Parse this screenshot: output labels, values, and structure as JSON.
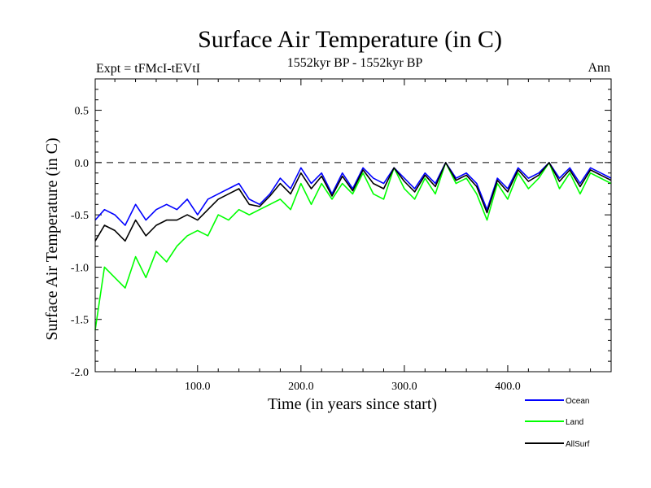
{
  "chart_data": {
    "type": "line",
    "title": "Surface Air Temperature (in C)",
    "subtitle_left": "Expt = tFMcI-tEVtI",
    "subtitle_center": "1552kyr BP - 1552kyr BP",
    "subtitle_right": "Ann",
    "xlabel": "Time (in years since start)",
    "ylabel": "Surface Air Temperature (in C)",
    "xlim": [
      1,
      500
    ],
    "ylim": [
      -2.0,
      0.8
    ],
    "x_ticks": [
      100,
      200,
      300,
      400
    ],
    "x_tick_labels": [
      "100.0",
      "200.0",
      "300.0",
      "400.0"
    ],
    "y_ticks": [
      0.5,
      0.0,
      -0.5,
      -1.0,
      -1.5,
      -2.0
    ],
    "y_tick_labels": [
      "0.5",
      "0.0",
      "-0.5",
      "-1.0",
      "-1.5",
      "-2.0"
    ],
    "reference_line": 0.0,
    "legend_position": "bottom-right",
    "series": [
      {
        "name": "Ocean",
        "color": "#0000ff",
        "x": [
          1,
          10,
          20,
          30,
          40,
          50,
          60,
          70,
          80,
          90,
          100,
          110,
          120,
          130,
          140,
          150,
          160,
          170,
          180,
          190,
          200,
          210,
          220,
          230,
          240,
          250,
          260,
          270,
          280,
          290,
          300,
          310,
          320,
          330,
          340,
          350,
          360,
          370,
          380,
          390,
          400,
          410,
          420,
          430,
          440,
          450,
          460,
          470,
          480,
          490,
          500
        ],
        "values": [
          -0.55,
          -0.45,
          -0.5,
          -0.6,
          -0.4,
          -0.55,
          -0.45,
          -0.4,
          -0.45,
          -0.35,
          -0.5,
          -0.35,
          -0.3,
          -0.25,
          -0.2,
          -0.35,
          -0.4,
          -0.3,
          -0.15,
          -0.25,
          -0.05,
          -0.2,
          -0.1,
          -0.3,
          -0.1,
          -0.25,
          -0.05,
          -0.15,
          -0.2,
          -0.05,
          -0.15,
          -0.25,
          -0.1,
          -0.2,
          0.0,
          -0.15,
          -0.1,
          -0.2,
          -0.45,
          -0.15,
          -0.25,
          -0.05,
          -0.15,
          -0.1,
          0.0,
          -0.15,
          -0.05,
          -0.2,
          -0.05,
          -0.1,
          -0.15
        ]
      },
      {
        "name": "Land",
        "color": "#00ff00",
        "x": [
          1,
          10,
          20,
          30,
          40,
          50,
          60,
          70,
          80,
          90,
          100,
          110,
          120,
          130,
          140,
          150,
          160,
          170,
          180,
          190,
          200,
          210,
          220,
          230,
          240,
          250,
          260,
          270,
          280,
          290,
          300,
          310,
          320,
          330,
          340,
          350,
          360,
          370,
          380,
          390,
          400,
          410,
          420,
          430,
          440,
          450,
          460,
          470,
          480,
          490,
          500
        ],
        "values": [
          -1.6,
          -1.0,
          -1.1,
          -1.2,
          -0.9,
          -1.1,
          -0.85,
          -0.95,
          -0.8,
          -0.7,
          -0.65,
          -0.7,
          -0.5,
          -0.55,
          -0.45,
          -0.5,
          -0.45,
          -0.4,
          -0.35,
          -0.45,
          -0.2,
          -0.4,
          -0.2,
          -0.35,
          -0.2,
          -0.3,
          -0.1,
          -0.3,
          -0.35,
          -0.05,
          -0.25,
          -0.35,
          -0.15,
          -0.3,
          0.0,
          -0.2,
          -0.15,
          -0.3,
          -0.55,
          -0.2,
          -0.35,
          -0.1,
          -0.25,
          -0.15,
          0.0,
          -0.25,
          -0.1,
          -0.3,
          -0.1,
          -0.15,
          -0.2
        ]
      },
      {
        "name": "AllSurf",
        "color": "#000000",
        "x": [
          1,
          10,
          20,
          30,
          40,
          50,
          60,
          70,
          80,
          90,
          100,
          110,
          120,
          130,
          140,
          150,
          160,
          170,
          180,
          190,
          200,
          210,
          220,
          230,
          240,
          250,
          260,
          270,
          280,
          290,
          300,
          310,
          320,
          330,
          340,
          350,
          360,
          370,
          380,
          390,
          400,
          410,
          420,
          430,
          440,
          450,
          460,
          470,
          480,
          490,
          500
        ],
        "values": [
          -0.75,
          -0.6,
          -0.65,
          -0.75,
          -0.55,
          -0.7,
          -0.6,
          -0.55,
          -0.55,
          -0.5,
          -0.55,
          -0.45,
          -0.35,
          -0.3,
          -0.25,
          -0.4,
          -0.42,
          -0.32,
          -0.2,
          -0.3,
          -0.1,
          -0.25,
          -0.13,
          -0.32,
          -0.13,
          -0.27,
          -0.07,
          -0.2,
          -0.25,
          -0.05,
          -0.18,
          -0.28,
          -0.12,
          -0.23,
          0.0,
          -0.17,
          -0.12,
          -0.23,
          -0.48,
          -0.17,
          -0.28,
          -0.07,
          -0.18,
          -0.12,
          0.0,
          -0.18,
          -0.07,
          -0.23,
          -0.07,
          -0.12,
          -0.17
        ]
      }
    ]
  }
}
